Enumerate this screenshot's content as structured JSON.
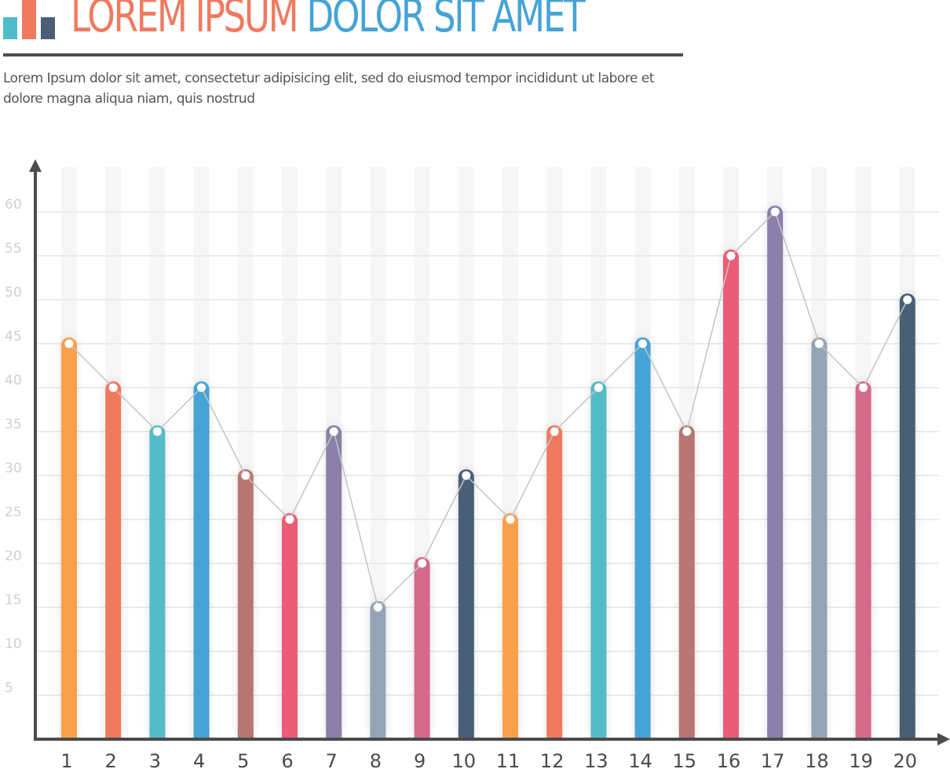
{
  "header": {
    "title_part1": "LOREM IPSUM",
    "title_part2": "DOLOR SIT AMET",
    "subtitle": "Lorem Ipsum dolor sit amet, consectetur adipisicing elit, sed do eiusmod tempor incididunt ut labore et dolore magna aliqua niam, quis nostrud",
    "logo_colors": [
      "#4fbdc9",
      "#ef7a5f",
      "#4a5e78"
    ]
  },
  "chart_data": {
    "type": "bar",
    "title": "LOREM IPSUM DOLOR SIT AMET",
    "xlabel": "",
    "ylabel": "",
    "categories": [
      "1",
      "2",
      "3",
      "4",
      "5",
      "6",
      "7",
      "8",
      "9",
      "10",
      "11",
      "12",
      "13",
      "14",
      "15",
      "16",
      "17",
      "18",
      "19",
      "20"
    ],
    "values": [
      45,
      40,
      35,
      40,
      30,
      25,
      35,
      15,
      20,
      30,
      25,
      35,
      40,
      45,
      35,
      55,
      60,
      45,
      40,
      50
    ],
    "colors": [
      "#f9a04c",
      "#ef7a5f",
      "#53bcc7",
      "#45a3d6",
      "#b87672",
      "#ec5c76",
      "#8a80aa",
      "#94a4b4",
      "#d46a8c",
      "#4a5e78",
      "#f9a04c",
      "#ef7a5f",
      "#53bcc7",
      "#45a3d6",
      "#b87672",
      "#ec5c76",
      "#8a80aa",
      "#94a4b4",
      "#d46a8c",
      "#4a5e78"
    ],
    "yticks": [
      5,
      10,
      15,
      20,
      25,
      30,
      35,
      40,
      45,
      50,
      55,
      60
    ],
    "ylim": [
      0,
      65
    ],
    "grid": true,
    "connector_line": true,
    "legend": "none"
  }
}
